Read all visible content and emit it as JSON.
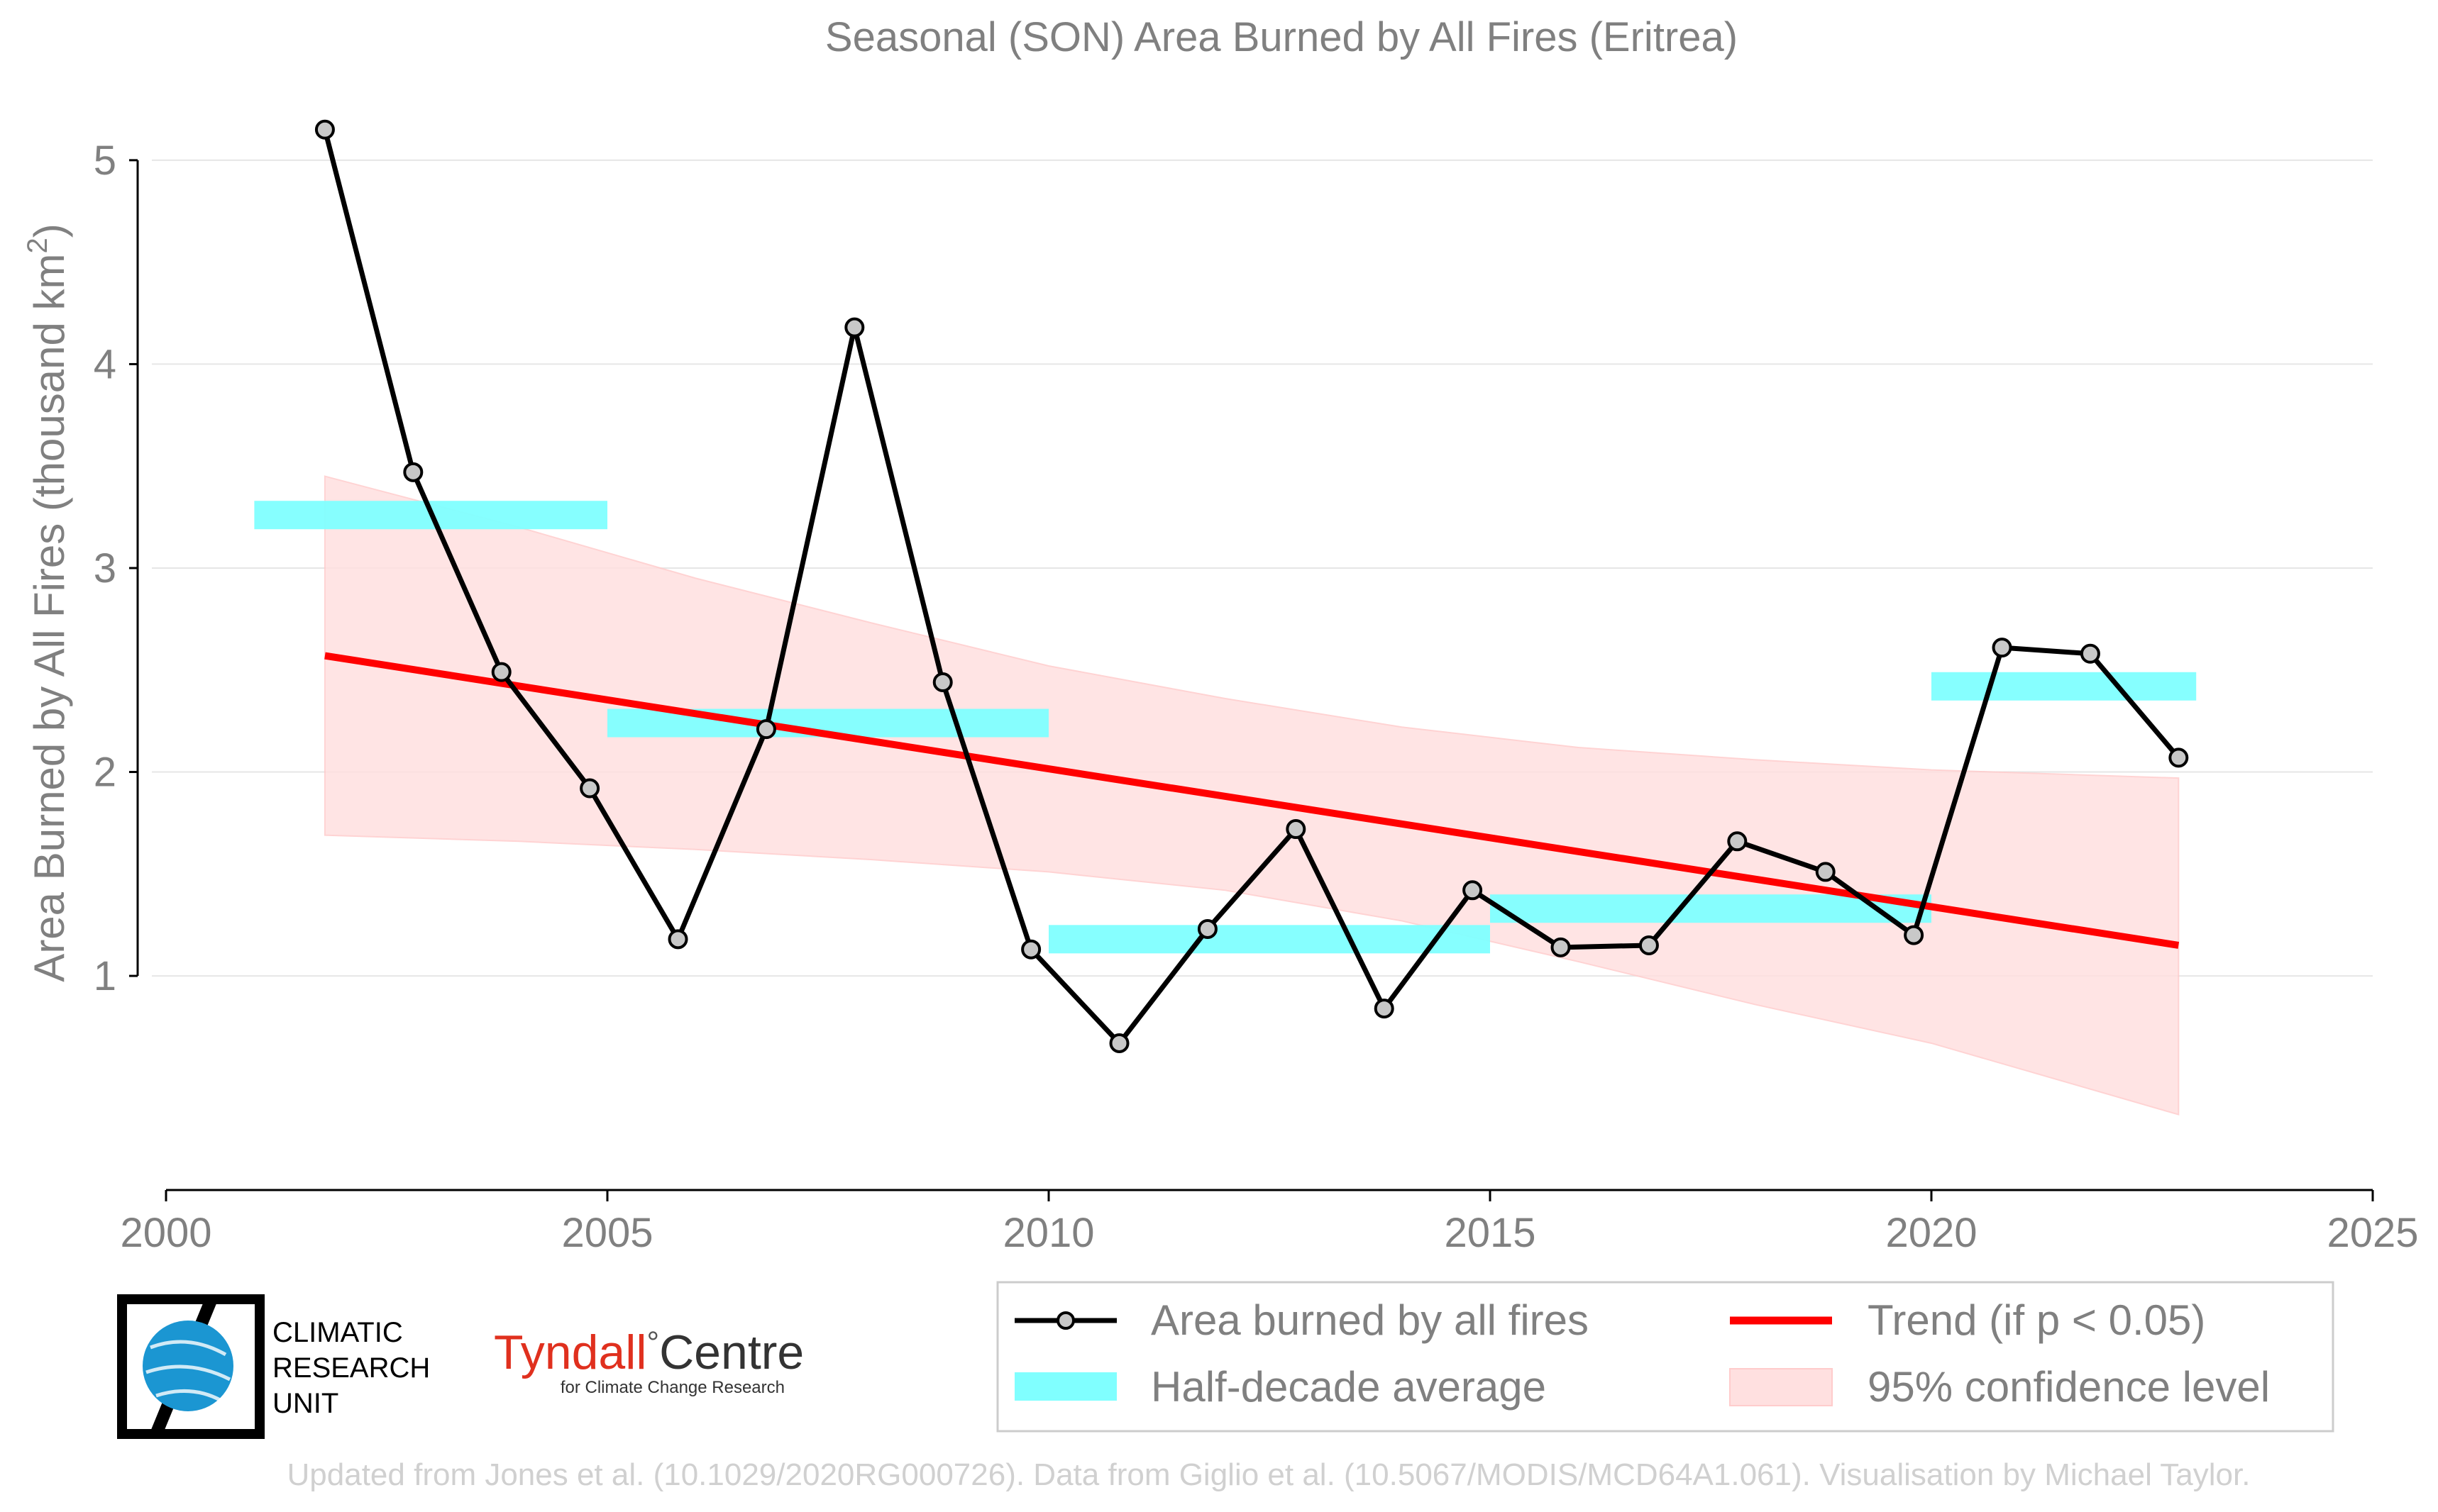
{
  "chart_data": {
    "type": "line",
    "title": "Seasonal (SON) Area Burned by All Fires (Eritrea)",
    "ylabel": "Area Burned by All Fires (thousand km",
    "ylabel_sup": "2",
    "ylabel_close": ")",
    "xlabel": "",
    "xlim": [
      2000,
      2025
    ],
    "ylim": [
      -0.05,
      5.25
    ],
    "x_ticks": [
      2000,
      2005,
      2010,
      2015,
      2020,
      2025
    ],
    "x_tick_labels": [
      "2000",
      "2005",
      "2010",
      "2015",
      "2020",
      "2025"
    ],
    "y_ticks": [
      1,
      2,
      3,
      4,
      5
    ],
    "y_tick_labels": [
      "1",
      "2",
      "3",
      "4",
      "5"
    ],
    "grid": "horizontal",
    "series": [
      {
        "name": "Area burned by all fires",
        "type": "line-marker",
        "color": "#000000",
        "marker_fill": "#c8c8c8",
        "x": [
          2001.8,
          2002.8,
          2003.8,
          2004.8,
          2005.8,
          2006.8,
          2007.8,
          2008.8,
          2009.8,
          2010.8,
          2011.8,
          2012.8,
          2013.8,
          2014.8,
          2015.8,
          2016.8,
          2017.8,
          2018.8,
          2019.8,
          2020.8,
          2021.8,
          2022.8
        ],
        "y": [
          5.15,
          3.47,
          2.49,
          1.92,
          1.18,
          2.21,
          4.18,
          2.44,
          1.13,
          0.67,
          1.23,
          1.72,
          0.84,
          1.42,
          1.14,
          1.15,
          1.66,
          1.51,
          1.2,
          2.61,
          2.58,
          2.07
        ]
      },
      {
        "name": "Half-decade average",
        "type": "step-band",
        "color": "#80ffff",
        "segments": [
          {
            "x0": 2001,
            "x1": 2005,
            "y": 3.26
          },
          {
            "x0": 2005,
            "x1": 2010,
            "y": 2.24
          },
          {
            "x0": 2010,
            "x1": 2015,
            "y": 1.18
          },
          {
            "x0": 2015,
            "x1": 2020,
            "y": 1.33
          },
          {
            "x0": 2020,
            "x1": 2023,
            "y": 2.42
          }
        ]
      },
      {
        "name": "Trend (if p < 0.05)",
        "type": "trend",
        "color": "#ff0000",
        "x": [
          2001.8,
          2022.8
        ],
        "y": [
          2.57,
          1.15
        ]
      },
      {
        "name": "95% confidence level",
        "type": "band",
        "color": "#ffe0e0",
        "x": [
          2001.8,
          2004,
          2006,
          2008,
          2010,
          2012,
          2014,
          2016,
          2018,
          2020,
          2022.8
        ],
        "upper": [
          3.45,
          3.2,
          2.95,
          2.73,
          2.52,
          2.36,
          2.22,
          2.12,
          2.06,
          2.01,
          1.97
        ],
        "lower": [
          1.69,
          1.66,
          1.62,
          1.57,
          1.51,
          1.42,
          1.27,
          1.07,
          0.86,
          0.67,
          0.32
        ]
      }
    ],
    "legend": {
      "placement": "bottom-right",
      "entries": [
        {
          "label": "Area burned by all fires",
          "kind": "line-marker"
        },
        {
          "label": "Trend (if p < 0.05)",
          "kind": "line-red"
        },
        {
          "label": "Half-decade average",
          "kind": "patch-cyan"
        },
        {
          "label": "95% confidence level",
          "kind": "patch-pink"
        }
      ]
    }
  },
  "logos": {
    "cru_line1": "CLIMATIC",
    "cru_line2": "RESEARCH",
    "cru_line3": "UNIT",
    "tyndall_name": "Tyndall",
    "tyndall_degree": "°",
    "tyndall_centre": "Centre",
    "tyndall_sub": "for Climate Change Research"
  },
  "footer": "Updated from Jones et al. (10.1029/2020RG000726). Data from Giglio et al. (10.5067/MODIS/MCD64A1.061). Visualisation by Michael Taylor."
}
